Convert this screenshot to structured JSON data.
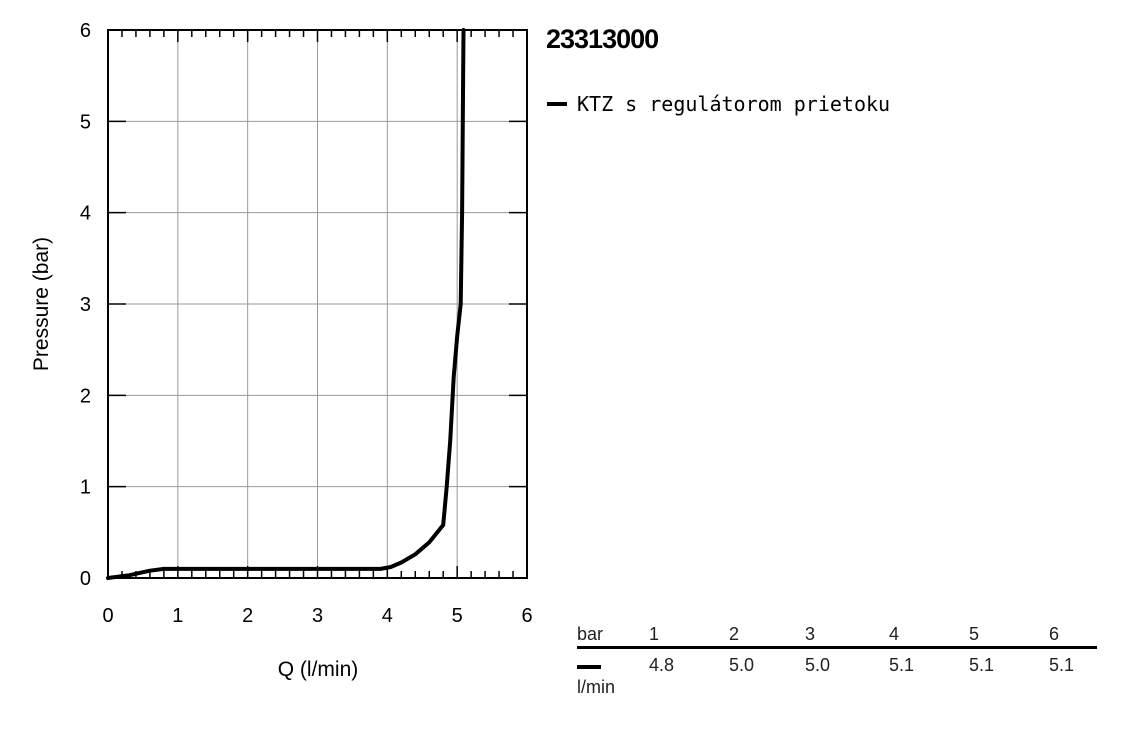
{
  "chart_data": {
    "type": "line",
    "title": "23313000",
    "xlabel": "Q (l/min)",
    "ylabel": "Pressure (bar)",
    "xlim": [
      0,
      6
    ],
    "ylim": [
      0,
      6
    ],
    "x_ticks": [
      "0",
      "1",
      "2",
      "3",
      "4",
      "5",
      "6"
    ],
    "y_ticks": [
      "0",
      "1",
      "2",
      "3",
      "4",
      "5",
      "6"
    ],
    "grid": true,
    "legend_position": "top-right",
    "series": [
      {
        "name": "KTZ s regulátorom prietoku",
        "color": "#000000",
        "points": [
          [
            0,
            0
          ],
          [
            0.3,
            0.03
          ],
          [
            0.6,
            0.08
          ],
          [
            0.8,
            0.1
          ],
          [
            1.0,
            0.1
          ],
          [
            2.0,
            0.1
          ],
          [
            3.0,
            0.1
          ],
          [
            3.9,
            0.1
          ],
          [
            4.05,
            0.12
          ],
          [
            4.2,
            0.17
          ],
          [
            4.4,
            0.26
          ],
          [
            4.6,
            0.39
          ],
          [
            4.8,
            0.58
          ],
          [
            4.85,
            1.0
          ],
          [
            4.9,
            1.5
          ],
          [
            4.95,
            2.2
          ],
          [
            5.0,
            2.65
          ],
          [
            5.05,
            3.0
          ],
          [
            5.07,
            4.0
          ],
          [
            5.08,
            5.0
          ],
          [
            5.09,
            6.0
          ]
        ]
      }
    ]
  },
  "table": {
    "header_label": "bar",
    "unit_label": "l/min",
    "pressures": [
      "1",
      "2",
      "3",
      "4",
      "5",
      "6"
    ],
    "flows": [
      "4.8",
      "5.0",
      "5.0",
      "5.1",
      "5.1",
      "5.1"
    ]
  }
}
